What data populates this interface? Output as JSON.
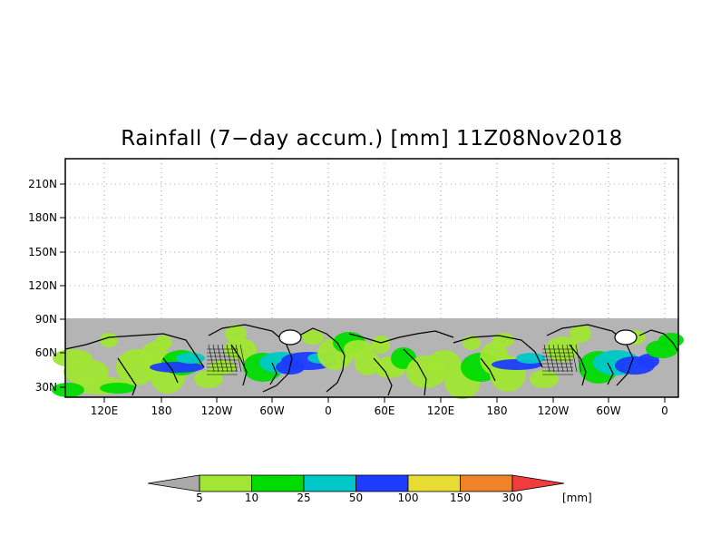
{
  "title": "Rainfall (7−day accum.) [mm] 11Z08Nov2018",
  "map": {
    "lat_ticks": [
      "30N",
      "60N",
      "90N",
      "120N",
      "150N",
      "180N",
      "210N"
    ],
    "lon_ticks": [
      "120E",
      "180",
      "120W",
      "60W",
      "0",
      "60E",
      "120E",
      "180",
      "120W",
      "60W",
      "0"
    ],
    "colors": {
      "background": "#ffffff",
      "land_nodata": "#b4b4b4",
      "coast": "#000000",
      "grid": "#888888"
    }
  },
  "legend": {
    "levels": [
      "5",
      "10",
      "25",
      "50",
      "100",
      "150",
      "300"
    ],
    "unit": "[mm]",
    "colors": [
      "#aaaaaa",
      "#a0e632",
      "#00dc00",
      "#00c8c8",
      "#1e3cff",
      "#e6dc32",
      "#f08228",
      "#f03c3c"
    ]
  }
}
